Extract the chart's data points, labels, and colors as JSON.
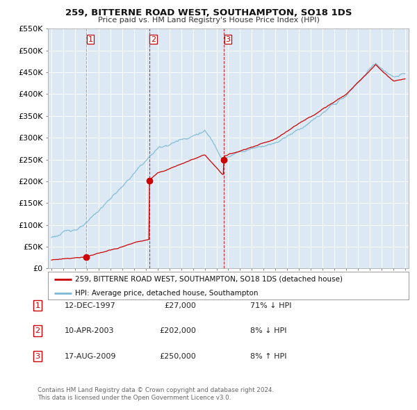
{
  "title": "259, BITTERNE ROAD WEST, SOUTHAMPTON, SO18 1DS",
  "subtitle": "Price paid vs. HM Land Registry's House Price Index (HPI)",
  "legend_line1": "259, BITTERNE ROAD WEST, SOUTHAMPTON, SO18 1DS (detached house)",
  "legend_line2": "HPI: Average price, detached house, Southampton",
  "footer1": "Contains HM Land Registry data © Crown copyright and database right 2024.",
  "footer2": "This data is licensed under the Open Government Licence v3.0.",
  "transactions": [
    {
      "num": 1,
      "date": "12-DEC-1997",
      "price": 27000,
      "price_str": "£27,000",
      "pct": "71%",
      "dir": "↓",
      "year": 1997.95
    },
    {
      "num": 2,
      "date": "10-APR-2003",
      "price": 202000,
      "price_str": "£202,000",
      "pct": "8%",
      "dir": "↓",
      "year": 2003.28
    },
    {
      "num": 3,
      "date": "17-AUG-2009",
      "price": 250000,
      "price_str": "£250,000",
      "pct": "8%",
      "dir": "↑",
      "year": 2009.62
    }
  ],
  "hpi_color": "#7bb8d4",
  "price_color": "#cc0000",
  "vline1_color": "#aaaaaa",
  "vline23_color": "#cc0000",
  "background": "#ffffff",
  "chart_bg": "#dce9f5",
  "grid_color": "#ffffff",
  "ylim": [
    0,
    550000
  ],
  "xlim_start": 1994.7,
  "xlim_end": 2025.3,
  "hpi_start_year": 1995.0,
  "hpi_end_year": 2025.0
}
